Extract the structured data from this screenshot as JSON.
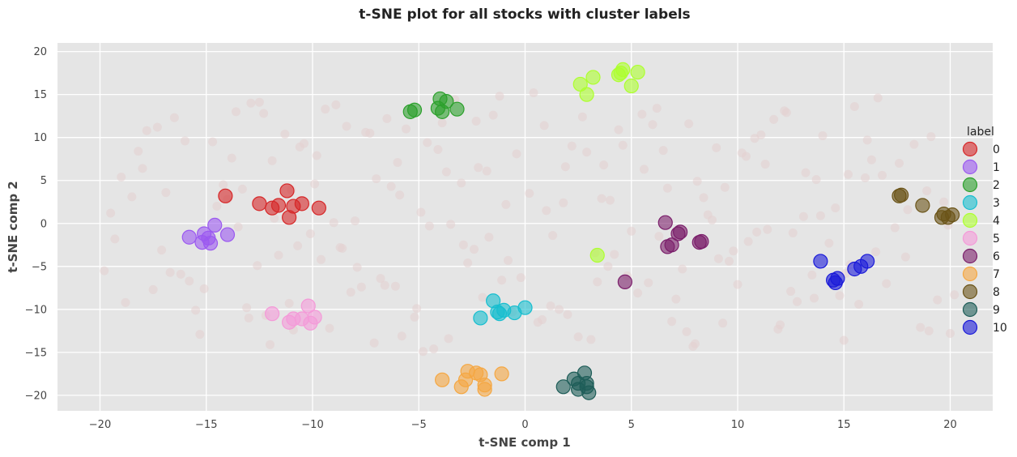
{
  "chart_data": {
    "type": "scatter",
    "title": "t-SNE plot for all stocks with cluster labels",
    "xlabel": "t-SNE comp 1",
    "ylabel": "t-SNE comp 2",
    "xlim": [
      -22,
      22
    ],
    "ylim": [
      -21.8,
      21
    ],
    "xticks": [
      -20,
      -15,
      -10,
      -5,
      0,
      5,
      10,
      15,
      20
    ],
    "yticks": [
      -20,
      -15,
      -10,
      -5,
      0,
      5,
      10,
      15,
      20
    ],
    "grid": true,
    "background_color": "#e5e5e5",
    "legend": {
      "title": "label",
      "placement": "right"
    },
    "background_points": {
      "color": "#e3cfcf",
      "x": [
        -19.5,
        -18.2,
        -17.1,
        -16.5,
        -15.8,
        -14.2,
        -13.1,
        -12.5,
        -11.8,
        -10.9,
        -9.8,
        -8.7,
        -7.5,
        -6.6,
        -5.9,
        -4.8,
        -3.9,
        -2.7,
        -1.8,
        -0.6,
        0.4,
        1.3,
        2.2,
        3.1,
        4.0,
        5.3,
        6.2,
        7.4,
        8.1,
        9.3,
        10.2,
        11.4,
        12.3,
        13.5,
        14.6,
        15.7,
        16.8,
        17.9,
        19.1,
        20.0,
        -19.0,
        -17.5,
        -16.0,
        -14.9,
        -13.6,
        -12.2,
        -11.0,
        -9.6,
        -8.4,
        -7.1,
        -6.0,
        -4.5,
        -3.3,
        -2.0,
        -0.9,
        0.8,
        1.9,
        3.3,
        4.4,
        5.8,
        6.7,
        7.9,
        9.0,
        10.5,
        11.7,
        12.8,
        13.9,
        15.1,
        16.3,
        18.6,
        -18.8,
        -16.9,
        -15.3,
        -13.8,
        -12.6,
        -11.3,
        -10.1,
        -8.9,
        -7.7,
        -6.3,
        -5.2,
        -4.1,
        -2.9,
        -1.5,
        -0.2,
        1.0,
        2.5,
        3.7,
        5.0,
        6.0,
        7.1,
        8.4,
        9.6,
        10.8,
        12.0,
        13.2,
        14.3,
        15.5,
        17.0,
        19.7,
        -19.8,
        -18.0,
        -15.5,
        -14.0,
        -12.9,
        -11.6,
        -10.4,
        -9.2,
        -8.0,
        -6.8,
        -5.6,
        -4.3,
        -3.0,
        -1.7,
        -0.4,
        1.2,
        2.7,
        3.9,
        5.6,
        6.9,
        8.6,
        9.8,
        11.1,
        12.5,
        13.7,
        15.0,
        16.1,
        17.4,
        18.9,
        20.2,
        -17.8,
        -16.2,
        -14.5,
        -13.0,
        -11.9,
        -10.7,
        -9.4,
        -8.2,
        -7.0,
        -5.8,
        -4.6,
        -3.5,
        -2.3,
        -1.1,
        0.2,
        1.6,
        2.9,
        4.2,
        5.5,
        7.6,
        8.8,
        10.0,
        11.3,
        12.6,
        14.0,
        15.3,
        16.6,
        18.0,
        19.4,
        -19.3,
        -17.3,
        -15.1,
        -13.3,
        -12.0,
        -10.6,
        -9.0,
        -7.9,
        -6.5,
        -5.1,
        -3.7,
        -2.4,
        -1.2,
        0.6,
        1.8,
        3.4,
        4.6,
        6.3,
        7.7,
        9.1,
        10.4,
        11.9,
        13.1,
        14.8,
        16.0,
        17.6,
        19.0,
        -18.5,
        -16.7,
        -14.7,
        -13.5,
        -12.3,
        -11.1,
        -9.9,
        -8.6,
        -7.3,
        -6.1,
        -4.9,
        -3.6,
        -2.2,
        -0.8,
        0.9,
        2.0,
        3.6,
        4.8,
        6.5,
        8.0,
        9.4,
        10.9,
        12.2,
        13.6,
        15.2,
        16.5,
        18.3,
        19.9
      ],
      "y": [
        1.2,
        8.4,
        -3.1,
        12.3,
        -6.7,
        4.5,
        -9.8,
        14.1,
        0.6,
        -12.4,
        7.9,
        -2.8,
        10.6,
        -7.2,
        3.3,
        -14.9,
        11.7,
        -4.6,
        6.1,
        -10.3,
        15.2,
        -1.4,
        9.0,
        -13.5,
        2.7,
        -8.1,
        13.4,
        -5.3,
        4.9,
        -11.6,
        8.2,
        -0.7,
        12.9,
        -6.0,
        1.8,
        -9.4,
        5.6,
        -3.9,
        10.1,
        -12.8,
        5.4,
        -7.7,
        9.6,
        -1.9,
        13.0,
        -10.7,
        3.9,
        -4.2,
        11.3,
        -13.9,
        7.1,
        -0.3,
        14.4,
        -8.6,
        2.2,
        -11.2,
        6.6,
        -3.4,
        10.9,
        -6.9,
        4.1,
        -14.3,
        8.8,
        -2.1,
        12.1,
        -9.1,
        0.9,
        -5.8,
        7.4,
        -12.1,
        -9.2,
        3.6,
        -12.9,
        7.6,
        -4.9,
        10.4,
        -1.2,
        13.8,
        -7.4,
        4.3,
        -10.9,
        8.6,
        -2.5,
        12.6,
        -6.3,
        1.5,
        -13.2,
        6.8,
        -0.9,
        11.5,
        -8.8,
        3.0,
        -4.4,
        9.9,
        -11.8,
        5.9,
        -2.3,
        13.6,
        -7.0,
        2.5,
        -5.5,
        6.4,
        -10.1,
        2.8,
        14.0,
        -3.7,
        9.3,
        -12.2,
        0.3,
        -6.4,
        11.0,
        -14.6,
        4.7,
        -1.6,
        8.1,
        -9.6,
        12.4,
        -5.0,
        6.3,
        -11.4,
        1.0,
        -3.2,
        10.3,
        -7.9,
        5.1,
        -13.6,
        9.7,
        -0.5,
        3.8,
        -8.3,
        10.8,
        -5.9,
        2.0,
        -11.0,
        7.3,
        -2.6,
        13.3,
        -8.0,
        5.2,
        -13.1,
        9.4,
        -0.1,
        11.9,
        -6.6,
        3.5,
        -10.0,
        8.3,
        -3.6,
        12.7,
        -12.6,
        0.4,
        -7.1,
        6.9,
        -1.1,
        10.2,
        -4.8,
        14.6,
        1.6,
        -8.9,
        -1.8,
        11.2,
        -7.6,
        4.0,
        -14.1,
        8.9,
        0.1,
        -5.1,
        12.2,
        -9.9,
        6.0,
        -3.0,
        14.8,
        -11.5,
        2.4,
        -6.8,
        9.1,
        -1.5,
        11.6,
        -4.1,
        7.8,
        -12.3,
        0.8,
        -8.4,
        5.3,
        7.0,
        -12.5,
        3.1,
        -5.7,
        9.5,
        -0.4,
        12.8,
        -9.3,
        4.6,
        -2.9,
        10.5,
        -7.3,
        1.3,
        -13.4,
        6.5,
        -4.3,
        11.4,
        -10.6,
        2.9,
        -6.1,
        8.5,
        -14.0,
        4.2,
        -1.0,
        13.1,
        -8.7,
        5.7,
        -3.3,
        9.2,
        -0.2
      ],
      "note": ""
    },
    "series": [
      {
        "name": "0",
        "color": "#d62728",
        "x": [
          -14.1,
          -12.5,
          -11.9,
          -11.6,
          -11.2,
          -11.1,
          -10.9,
          -10.5,
          -9.7
        ],
        "y": [
          3.2,
          2.3,
          1.8,
          2.1,
          3.8,
          0.7,
          2.0,
          2.3,
          1.8
        ]
      },
      {
        "name": "1",
        "color": "#9b59f0",
        "x": [
          -15.8,
          -15.2,
          -15.1,
          -14.9,
          -14.8,
          -14.6,
          -14.0
        ],
        "y": [
          -1.6,
          -2.2,
          -1.2,
          -1.7,
          -2.3,
          -0.2,
          -1.3
        ]
      },
      {
        "name": "2",
        "color": "#2ca02c",
        "x": [
          -5.4,
          -5.2,
          -4.1,
          -4.0,
          -3.9,
          -3.7,
          -3.2
        ],
        "y": [
          13.0,
          13.2,
          13.4,
          14.5,
          13.0,
          14.2,
          13.3
        ]
      },
      {
        "name": "3",
        "color": "#17becf",
        "x": [
          -2.1,
          -1.5,
          -1.3,
          -1.2,
          -1.0,
          -0.5,
          0.0
        ],
        "y": [
          -11.0,
          -9.0,
          -10.3,
          -10.5,
          -10.1,
          -10.4,
          -9.8
        ]
      },
      {
        "name": "4",
        "color": "#adff2f",
        "x": [
          2.6,
          2.9,
          3.2,
          3.4,
          4.4,
          4.5,
          4.6,
          5.0,
          5.3
        ],
        "y": [
          16.2,
          15.0,
          17.0,
          -3.7,
          17.3,
          17.5,
          17.9,
          16.0,
          17.6
        ]
      },
      {
        "name": "5",
        "color": "#f49ad8",
        "x": [
          -11.9,
          -11.1,
          -10.9,
          -10.5,
          -10.2,
          -10.1,
          -9.9
        ],
        "y": [
          -10.5,
          -11.5,
          -11.1,
          -11.1,
          -9.6,
          -11.6,
          -10.9
        ]
      },
      {
        "name": "6",
        "color": "#7b1f6b",
        "x": [
          4.7,
          6.6,
          6.7,
          6.9,
          7.2,
          7.3,
          8.2,
          8.3
        ],
        "y": [
          -6.8,
          0.1,
          -2.7,
          -2.5,
          -1.2,
          -1.0,
          -2.2,
          -2.1
        ]
      },
      {
        "name": "7",
        "color": "#f5a742",
        "x": [
          -3.9,
          -3.0,
          -2.8,
          -2.7,
          -2.3,
          -2.1,
          -1.9,
          -1.9,
          -1.1
        ],
        "y": [
          -18.2,
          -19.0,
          -18.2,
          -17.2,
          -17.4,
          -17.6,
          -18.8,
          -19.3,
          -17.5
        ]
      },
      {
        "name": "8",
        "color": "#6b5418",
        "x": [
          17.6,
          17.7,
          18.7,
          19.6,
          19.7,
          19.9,
          20.1
        ],
        "y": [
          3.2,
          3.3,
          2.1,
          0.7,
          1.1,
          0.7,
          1.0
        ]
      },
      {
        "name": "9",
        "color": "#1e5d58",
        "x": [
          1.8,
          2.3,
          2.5,
          2.5,
          2.8,
          2.9,
          2.9,
          3.0
        ],
        "y": [
          -19.0,
          -18.1,
          -18.6,
          -19.3,
          -17.4,
          -18.6,
          -19.0,
          -19.7
        ]
      },
      {
        "name": "10",
        "color": "#1a1ad8",
        "x": [
          13.9,
          14.5,
          14.6,
          14.7,
          15.5,
          15.8,
          16.1
        ],
        "y": [
          -4.4,
          -6.6,
          -6.9,
          -6.4,
          -5.3,
          -5.0,
          -4.4
        ]
      }
    ]
  }
}
